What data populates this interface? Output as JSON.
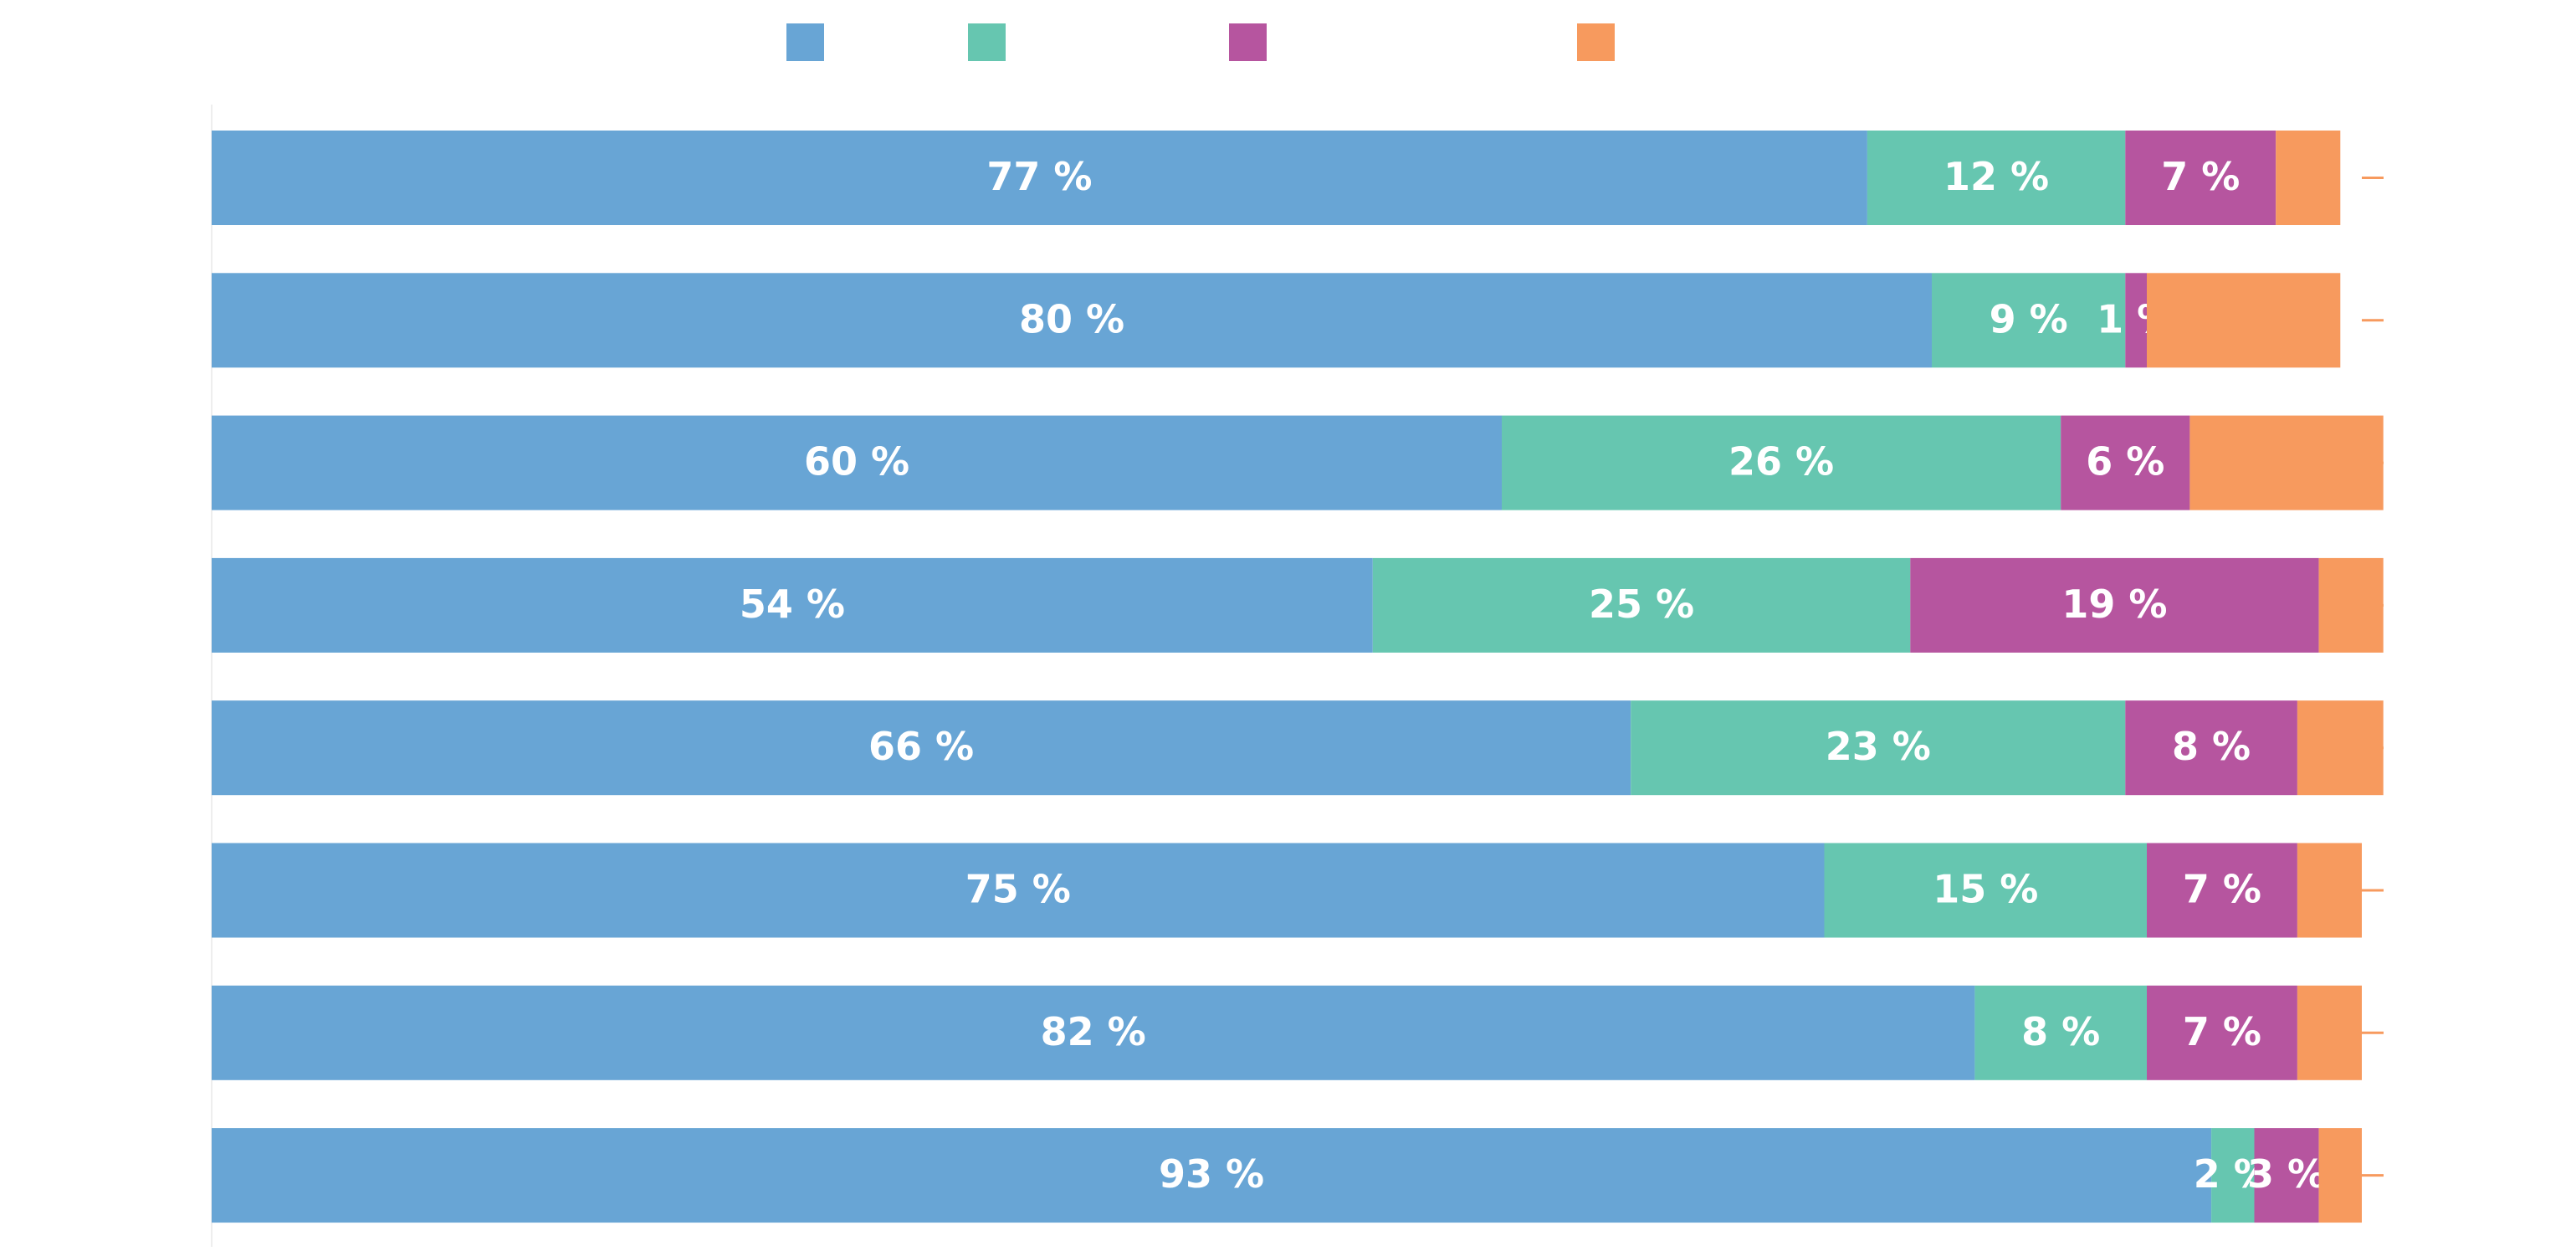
{
  "chart_data": {
    "type": "stacked_bar_horizontal",
    "categories": [
      null,
      null,
      null,
      null,
      null,
      null,
      null,
      null
    ],
    "xlim": [
      0,
      100
    ],
    "series": [
      {
        "color": "#68a5d5",
        "values": [
          77,
          80,
          60,
          54,
          66,
          75,
          82,
          93
        ],
        "value_labels": [
          "77 %",
          "80 %",
          "60 %",
          "54 %",
          "66 %",
          "75 %",
          "82 %",
          "93 %"
        ]
      },
      {
        "color": "#66c6b0",
        "values": [
          12,
          9,
          26,
          25,
          23,
          15,
          8,
          2
        ],
        "value_labels": [
          "12 %",
          "9 %",
          "26 %",
          "25 %",
          "23 %",
          "15 %",
          "8 %",
          "2 %"
        ]
      },
      {
        "color": "#b6559f",
        "values": [
          7,
          1,
          6,
          19,
          8,
          7,
          7,
          3
        ],
        "value_labels": [
          "7 %",
          "1 %",
          "6 %",
          "19 %",
          "8 %",
          "7 %",
          "7 %",
          "3 %"
        ]
      },
      {
        "color": "#f79a5e",
        "values": [
          3,
          9,
          9,
          3,
          4,
          3,
          3,
          2
        ]
      }
    ]
  }
}
